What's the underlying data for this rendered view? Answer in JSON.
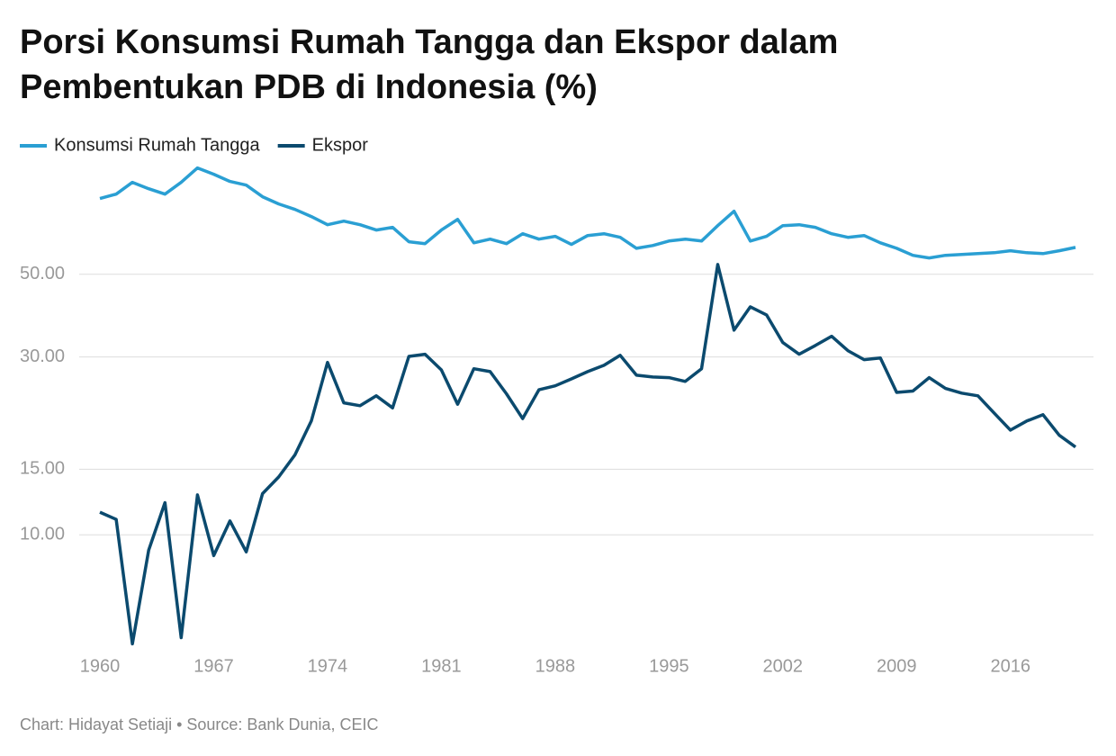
{
  "chart_data": {
    "type": "line",
    "title": "Porsi Konsumsi Rumah Tangga dan Ekspor dalam Pembentukan PDB di Indonesia (%)",
    "source": "Chart: Hidayat Setiaji • Source: Bank Dunia, CEIC",
    "x": [
      1960,
      1961,
      1962,
      1963,
      1964,
      1965,
      1966,
      1967,
      1968,
      1969,
      1970,
      1971,
      1972,
      1973,
      1974,
      1975,
      1976,
      1977,
      1978,
      1979,
      1980,
      1981,
      1982,
      1983,
      1984,
      1985,
      1986,
      1987,
      1988,
      1989,
      1990,
      1991,
      1992,
      1993,
      1994,
      1995,
      1996,
      1997,
      1998,
      1999,
      2000,
      2001,
      2002,
      2003,
      2004,
      2005,
      2006,
      2007,
      2008,
      2009,
      2010,
      2011,
      2012,
      2013,
      2014,
      2015,
      2016,
      2017,
      2018,
      2019,
      2020
    ],
    "series": [
      {
        "name": "Konsumsi Rumah Tangga",
        "color": "#2a9fd3",
        "values": [
          79.8,
          82.0,
          88.2,
          84.8,
          82.0,
          88.2,
          96.4,
          92.7,
          88.7,
          86.7,
          80.7,
          77.2,
          74.6,
          71.4,
          67.9,
          69.4,
          67.9,
          65.7,
          66.8,
          61.1,
          60.4,
          65.7,
          70.2,
          60.7,
          62.1,
          60.4,
          64.2,
          62.1,
          63.2,
          60.1,
          63.5,
          64.2,
          62.8,
          58.7,
          59.7,
          61.4,
          62.1,
          61.4,
          67.5,
          73.8,
          61.4,
          63.2,
          67.5,
          67.9,
          66.8,
          64.2,
          62.8,
          63.5,
          60.7,
          58.7,
          56.2,
          55.3,
          56.2,
          56.5,
          56.8,
          57.1,
          57.8,
          57.1,
          56.8,
          57.8,
          59.0
        ]
      },
      {
        "name": "Ekspor",
        "color": "#0b4a6e",
        "values": [
          11.5,
          11.0,
          5.1,
          9.1,
          12.2,
          5.3,
          12.8,
          8.8,
          10.9,
          9.0,
          12.9,
          14.3,
          16.4,
          20.2,
          29.0,
          22.6,
          22.2,
          23.6,
          21.9,
          30.1,
          30.5,
          27.7,
          22.4,
          27.9,
          27.4,
          23.9,
          20.5,
          24.5,
          25.1,
          26.2,
          27.4,
          28.5,
          30.3,
          26.8,
          26.5,
          26.4,
          25.8,
          27.9,
          53.1,
          35.4,
          40.9,
          38.9,
          32.8,
          30.5,
          32.2,
          34.1,
          31.2,
          29.5,
          29.8,
          24.1,
          24.3,
          26.4,
          24.7,
          24.0,
          23.6,
          21.2,
          19.1,
          20.2,
          21.0,
          18.5,
          17.2
        ]
      }
    ],
    "xlim": [
      1960,
      2020
    ],
    "xticks": [
      1960,
      1967,
      1974,
      1981,
      1988,
      1995,
      2002,
      2009,
      2016
    ],
    "ylim": [
      5,
      100
    ],
    "yticks": [
      {
        "value": 10,
        "label": "10.00"
      },
      {
        "value": 15,
        "label": "15.00"
      },
      {
        "value": 30,
        "label": "30.00"
      },
      {
        "value": 50,
        "label": "50.00"
      }
    ],
    "log_scale": true,
    "grid": true,
    "legend": "top"
  }
}
